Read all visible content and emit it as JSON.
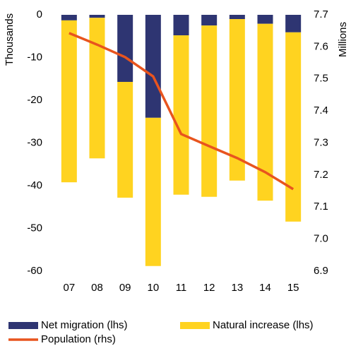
{
  "chart_data": {
    "type": "stacked-bar-line",
    "y_label": "Thousands",
    "y2_label": "Millions",
    "categories": [
      "07",
      "08",
      "09",
      "10",
      "11",
      "12",
      "13",
      "14",
      "15"
    ],
    "series": [
      {
        "name": "Net migration (lhs)",
        "color": "#2e3572",
        "values": [
          -1.3,
          -0.7,
          -15.7,
          -24.1,
          -4.8,
          -2.5,
          -1.0,
          -2.1,
          -4.1
        ]
      },
      {
        "name": "Natural increase (lhs)",
        "color": "#ffd320",
        "values": [
          -37.9,
          -32.9,
          -27.1,
          -34.7,
          -37.3,
          -40.1,
          -37.8,
          -41.4,
          -44.3
        ]
      },
      {
        "name": "Population (rhs)",
        "color": "#e8541e",
        "axis": "y2",
        "values": [
          7.643,
          7.607,
          7.568,
          7.508,
          7.328,
          7.29,
          7.253,
          7.209,
          7.156
        ]
      }
    ],
    "ylim": [
      -60,
      0
    ],
    "yticks": [
      0,
      -10,
      -20,
      -30,
      -40,
      -50,
      -60
    ],
    "y2lim": [
      6.9,
      7.7
    ],
    "y2ticks": [
      7.7,
      7.6,
      7.5,
      7.4,
      7.3,
      7.2,
      7.1,
      {
        "value": 7,
        "label": "7.0"
      },
      6.9
    ]
  }
}
